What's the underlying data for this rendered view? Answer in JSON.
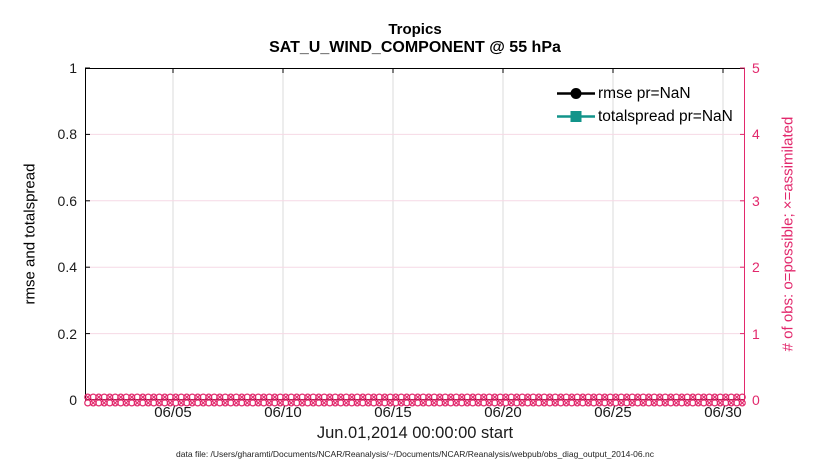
{
  "chart_data": {
    "type": "line",
    "title": "Tropics",
    "subtitle": "SAT_U_WIND_COMPONENT @ 55 hPa",
    "xlabel": "Jun.01,2014 00:00:00 start",
    "ylabel_left": "rmse and totalspread",
    "ylabel_right": "# of obs: o=possible; ×=assimilated",
    "footer": "data file: /Users/gharamti/Documents/NCAR/Reanalysis/~/Documents/NCAR/Reanalysis/webpub/obs_diag_output_2014-06.nc",
    "x_axis": {
      "tick_labels": [
        "06/05",
        "06/10",
        "06/15",
        "06/20",
        "06/25",
        "06/30"
      ],
      "tick_days": [
        4,
        9,
        14,
        19,
        24,
        29
      ],
      "range_days": [
        0,
        30
      ]
    },
    "y_left": {
      "tick_labels": [
        "0",
        "0.2",
        "0.4",
        "0.6",
        "0.8",
        "1"
      ],
      "lim": [
        0,
        1
      ]
    },
    "y_right": {
      "tick_labels": [
        "0",
        "1",
        "2",
        "3",
        "4",
        "5"
      ],
      "lim": [
        0,
        5
      ]
    },
    "grid": true,
    "legend_position": "upper right inside, no box",
    "series": [
      {
        "name": "rmse",
        "legend": "rmse pr=NaN",
        "color": "#000000",
        "marker": "circle",
        "values": "NaN (no curve plotted)"
      },
      {
        "name": "totalspread",
        "legend": "totalspread pr=NaN",
        "color": "#12948A",
        "marker": "square",
        "values": "NaN (no curve plotted)"
      },
      {
        "name": "obs possible (o)",
        "axis": "right",
        "marker": "o",
        "color": "#E2286C",
        "constant_value": 0,
        "n_points": 120
      },
      {
        "name": "obs assimilated (×)",
        "axis": "right",
        "marker": "x",
        "color": "#E2286C",
        "constant_value": 0,
        "n_points": 120
      }
    ]
  },
  "colors": {
    "axis_left": "#000000",
    "axis_right": "#E2286C",
    "grid_vertical": "#DBDBDB",
    "grid_horizontal": "#F6D9E5",
    "background": "#FFFFFF"
  }
}
